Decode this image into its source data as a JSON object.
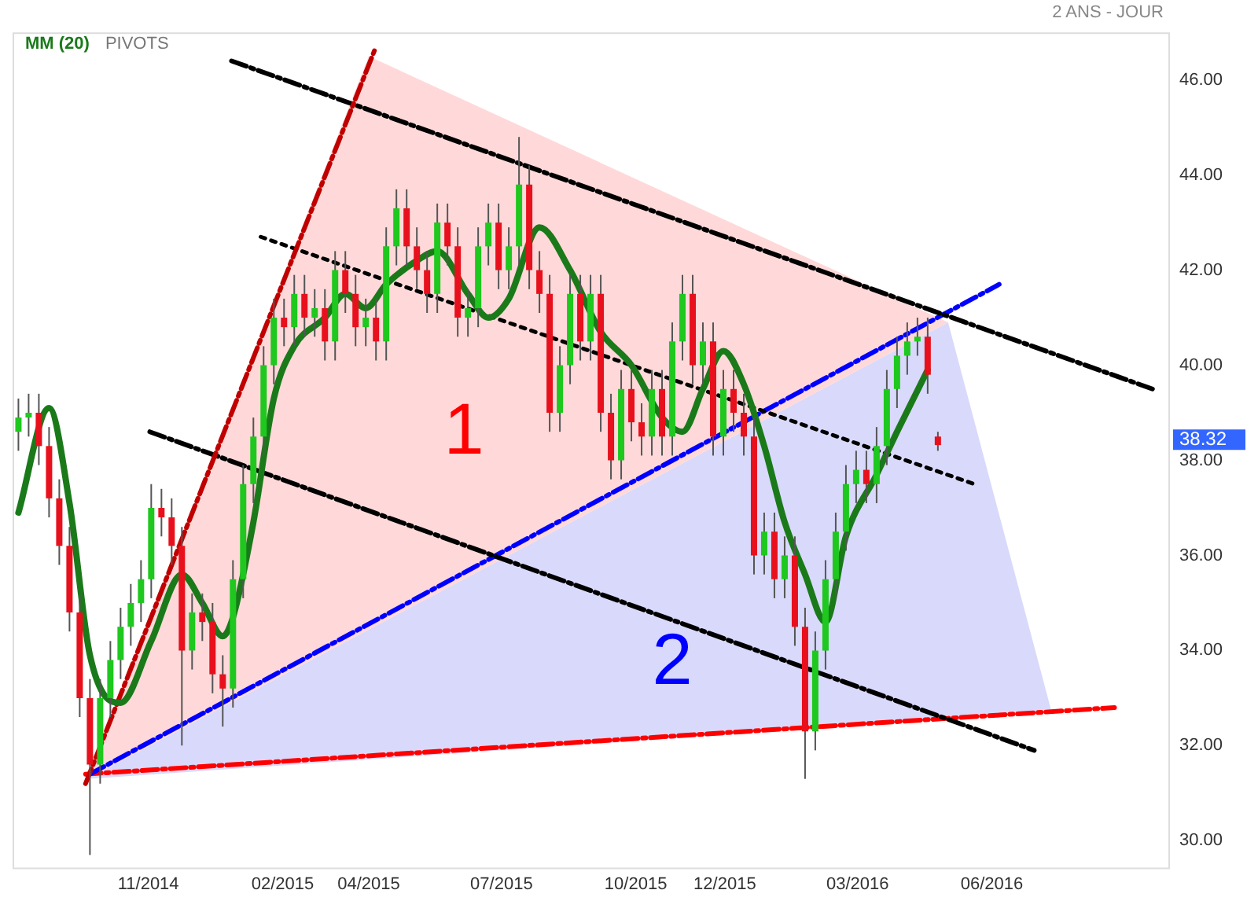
{
  "chart_data": {
    "type": "candlestick",
    "subtitle": "2 ANS - JOUR",
    "x": [
      "2014-08-04",
      "2014-08-11",
      "2014-08-18",
      "2014-08-25",
      "2014-09-01",
      "2014-09-08",
      "2014-09-15",
      "2014-09-22",
      "2014-09-29",
      "2014-10-06",
      "2014-10-13",
      "2014-10-20",
      "2014-10-27",
      "2014-11-03",
      "2014-11-10",
      "2014-11-17",
      "2014-11-24",
      "2014-12-01",
      "2014-12-08",
      "2014-12-15",
      "2014-12-22",
      "2014-12-29",
      "2015-01-05",
      "2015-01-12",
      "2015-01-19",
      "2015-01-26",
      "2015-02-02",
      "2015-02-09",
      "2015-02-16",
      "2015-02-23",
      "2015-03-02",
      "2015-03-09",
      "2015-03-16",
      "2015-03-23",
      "2015-03-30",
      "2015-04-06",
      "2015-04-13",
      "2015-04-20",
      "2015-04-27",
      "2015-05-04",
      "2015-05-11",
      "2015-05-18",
      "2015-05-25",
      "2015-06-01",
      "2015-06-08",
      "2015-06-15",
      "2015-06-22",
      "2015-06-29",
      "2015-07-06",
      "2015-07-13",
      "2015-07-20",
      "2015-07-27",
      "2015-08-03",
      "2015-08-10",
      "2015-08-17",
      "2015-08-24",
      "2015-08-31",
      "2015-09-07",
      "2015-09-14",
      "2015-09-21",
      "2015-09-28",
      "2015-10-05",
      "2015-10-12",
      "2015-10-19",
      "2015-10-26",
      "2015-11-02",
      "2015-11-09",
      "2015-11-16",
      "2015-11-23",
      "2015-11-30",
      "2015-12-07",
      "2015-12-14",
      "2015-12-21",
      "2015-12-28",
      "2016-01-04",
      "2016-01-11",
      "2016-01-18",
      "2016-01-25",
      "2016-02-01",
      "2016-02-08",
      "2016-02-15",
      "2016-02-22",
      "2016-02-29",
      "2016-03-07",
      "2016-03-14",
      "2016-03-21",
      "2016-03-28",
      "2016-04-04",
      "2016-04-11",
      "2016-04-18",
      "2016-04-25"
    ],
    "ohlc": [
      [
        38.6,
        39.3,
        38.2,
        38.9
      ],
      [
        38.9,
        39.4,
        38.5,
        39.0
      ],
      [
        39.0,
        39.4,
        37.9,
        38.3
      ],
      [
        38.3,
        38.7,
        36.8,
        37.2
      ],
      [
        37.2,
        37.6,
        35.8,
        36.2
      ],
      [
        36.2,
        36.6,
        34.4,
        34.8
      ],
      [
        34.8,
        35.2,
        32.6,
        33.0
      ],
      [
        33.0,
        33.4,
        29.7,
        31.6
      ],
      [
        31.6,
        33.4,
        31.2,
        33.0
      ],
      [
        33.0,
        34.2,
        32.6,
        33.8
      ],
      [
        33.8,
        34.9,
        33.4,
        34.5
      ],
      [
        34.5,
        35.4,
        34.1,
        35.0
      ],
      [
        35.0,
        35.9,
        34.6,
        35.5
      ],
      [
        35.5,
        37.5,
        35.1,
        37.0
      ],
      [
        37.0,
        37.4,
        36.4,
        36.8
      ],
      [
        36.8,
        37.2,
        35.8,
        36.2
      ],
      [
        36.2,
        36.6,
        32.0,
        34.0
      ],
      [
        34.0,
        35.2,
        33.6,
        34.8
      ],
      [
        34.8,
        35.2,
        34.2,
        34.6
      ],
      [
        34.6,
        35.0,
        33.1,
        33.5
      ],
      [
        33.5,
        33.9,
        32.4,
        33.2
      ],
      [
        33.2,
        35.9,
        32.8,
        35.5
      ],
      [
        35.5,
        37.9,
        35.1,
        37.5
      ],
      [
        37.5,
        38.9,
        37.1,
        38.5
      ],
      [
        38.5,
        40.4,
        38.1,
        40.0
      ],
      [
        40.0,
        41.4,
        39.6,
        41.0
      ],
      [
        41.0,
        41.4,
        40.4,
        40.8
      ],
      [
        40.8,
        41.9,
        40.4,
        41.5
      ],
      [
        41.5,
        41.9,
        40.6,
        41.0
      ],
      [
        41.0,
        41.6,
        40.6,
        41.2
      ],
      [
        41.2,
        41.6,
        40.1,
        40.5
      ],
      [
        40.5,
        42.4,
        40.1,
        42.0
      ],
      [
        42.0,
        42.4,
        41.1,
        41.5
      ],
      [
        41.5,
        41.9,
        40.4,
        40.8
      ],
      [
        40.8,
        41.4,
        40.4,
        41.0
      ],
      [
        41.0,
        41.4,
        40.1,
        40.5
      ],
      [
        40.5,
        42.9,
        40.1,
        42.5
      ],
      [
        42.5,
        43.7,
        42.1,
        43.3
      ],
      [
        43.3,
        43.7,
        42.1,
        42.5
      ],
      [
        42.5,
        42.9,
        41.6,
        42.0
      ],
      [
        42.0,
        42.4,
        41.1,
        41.5
      ],
      [
        41.5,
        43.4,
        41.1,
        43.0
      ],
      [
        43.0,
        43.4,
        42.1,
        42.5
      ],
      [
        42.5,
        42.9,
        40.6,
        41.0
      ],
      [
        41.0,
        41.6,
        40.6,
        41.2
      ],
      [
        41.2,
        42.9,
        40.8,
        42.5
      ],
      [
        42.5,
        43.4,
        42.1,
        43.0
      ],
      [
        43.0,
        43.4,
        41.6,
        42.0
      ],
      [
        42.0,
        42.9,
        41.6,
        42.5
      ],
      [
        42.5,
        44.8,
        42.1,
        43.8
      ],
      [
        43.8,
        44.2,
        41.6,
        42.0
      ],
      [
        42.0,
        42.4,
        41.1,
        41.5
      ],
      [
        41.5,
        41.9,
        38.6,
        39.0
      ],
      [
        39.0,
        40.4,
        38.6,
        40.0
      ],
      [
        40.0,
        41.9,
        39.6,
        41.5
      ],
      [
        41.5,
        41.9,
        40.1,
        40.5
      ],
      [
        40.5,
        41.9,
        40.1,
        41.5
      ],
      [
        41.5,
        41.9,
        38.6,
        39.0
      ],
      [
        39.0,
        39.4,
        37.6,
        38.0
      ],
      [
        38.0,
        39.9,
        37.6,
        39.5
      ],
      [
        39.5,
        39.9,
        38.4,
        38.8
      ],
      [
        38.8,
        39.2,
        38.1,
        38.5
      ],
      [
        38.5,
        39.9,
        38.1,
        39.5
      ],
      [
        39.5,
        39.9,
        38.1,
        38.5
      ],
      [
        38.5,
        40.9,
        38.1,
        40.5
      ],
      [
        40.5,
        41.9,
        40.1,
        41.5
      ],
      [
        41.5,
        41.9,
        39.6,
        40.0
      ],
      [
        40.0,
        40.9,
        39.6,
        40.5
      ],
      [
        40.5,
        40.9,
        38.1,
        38.5
      ],
      [
        38.5,
        39.9,
        38.1,
        39.5
      ],
      [
        39.5,
        39.9,
        38.6,
        39.0
      ],
      [
        39.0,
        39.4,
        38.1,
        38.5
      ],
      [
        38.5,
        38.9,
        35.6,
        36.0
      ],
      [
        36.0,
        36.9,
        35.6,
        36.5
      ],
      [
        36.5,
        36.9,
        35.1,
        35.5
      ],
      [
        35.5,
        36.4,
        35.1,
        36.0
      ],
      [
        36.0,
        36.4,
        34.1,
        34.5
      ],
      [
        34.5,
        34.9,
        31.3,
        32.3
      ],
      [
        32.3,
        34.4,
        31.9,
        34.0
      ],
      [
        34.0,
        35.9,
        33.6,
        35.5
      ],
      [
        35.5,
        36.9,
        35.1,
        36.5
      ],
      [
        36.5,
        37.9,
        36.1,
        37.5
      ],
      [
        37.5,
        38.2,
        37.1,
        37.8
      ],
      [
        37.8,
        38.2,
        37.1,
        37.5
      ],
      [
        37.5,
        38.7,
        37.1,
        38.3
      ],
      [
        38.3,
        39.9,
        37.9,
        39.5
      ],
      [
        39.5,
        40.6,
        39.1,
        40.2
      ],
      [
        40.2,
        40.9,
        39.8,
        40.5
      ],
      [
        40.5,
        41.0,
        40.2,
        40.6
      ],
      [
        40.6,
        41.0,
        39.4,
        39.8
      ],
      [
        38.5,
        38.6,
        38.2,
        38.32
      ]
    ],
    "colors": [
      "#1ec81e",
      "#1ec81e",
      "#e8101c",
      "#e8101c",
      "#e8101c",
      "#e8101c",
      "#e8101c",
      "#e8101c",
      "#1ec81e",
      "#1ec81e",
      "#1ec81e",
      "#1ec81e",
      "#1ec81e",
      "#1ec81e",
      "#e8101c",
      "#e8101c",
      "#e8101c",
      "#1ec81e",
      "#e8101c",
      "#e8101c",
      "#e8101c",
      "#1ec81e",
      "#1ec81e",
      "#1ec81e",
      "#1ec81e",
      "#1ec81e",
      "#e8101c",
      "#1ec81e",
      "#e8101c",
      "#1ec81e",
      "#e8101c",
      "#1ec81e",
      "#e8101c",
      "#e8101c",
      "#1ec81e",
      "#e8101c",
      "#1ec81e",
      "#1ec81e",
      "#e8101c",
      "#e8101c",
      "#e8101c",
      "#1ec81e",
      "#e8101c",
      "#e8101c",
      "#1ec81e",
      "#1ec81e",
      "#1ec81e",
      "#e8101c",
      "#1ec81e",
      "#1ec81e",
      "#e8101c",
      "#e8101c",
      "#e8101c",
      "#1ec81e",
      "#1ec81e",
      "#e8101c",
      "#1ec81e",
      "#e8101c",
      "#e8101c",
      "#1ec81e",
      "#e8101c",
      "#e8101c",
      "#1ec81e",
      "#e8101c",
      "#1ec81e",
      "#1ec81e",
      "#e8101c",
      "#1ec81e",
      "#e8101c",
      "#1ec81e",
      "#e8101c",
      "#e8101c",
      "#e8101c",
      "#1ec81e",
      "#e8101c",
      "#1ec81e",
      "#e8101c",
      "#e8101c",
      "#1ec81e",
      "#1ec81e",
      "#1ec81e",
      "#1ec81e",
      "#1ec81e",
      "#e8101c",
      "#1ec81e",
      "#1ec81e",
      "#1ec81e",
      "#1ec81e",
      "#1ec81e",
      "#e8101c",
      "#e8101c"
    ],
    "series": [
      {
        "type": "area",
        "color": "#ffd9d9",
        "x": [
          "2014-09-20",
          "2015-04-01",
          "2016-05-02",
          "2014-09-20"
        ],
        "values": [
          31.3,
          46.5,
          40.9,
          31.3
        ]
      },
      {
        "type": "area",
        "color": "#d9d9fb",
        "x": [
          "2014-09-20",
          "2016-05-02",
          "2016-07-12",
          "2014-09-20"
        ],
        "values": [
          31.3,
          40.9,
          32.7,
          31.3
        ]
      },
      {
        "type": "line",
        "name": "MM (20)",
        "color": "#1a7a1a",
        "line_style": "solid",
        "x": [
          "2014-08-04",
          "2014-08-25",
          "2014-09-08",
          "2014-09-22",
          "2014-10-13",
          "2014-11-03",
          "2014-11-24",
          "2014-12-08",
          "2014-12-22",
          "2014-12-29",
          "2015-01-12",
          "2015-01-26",
          "2015-02-09",
          "2015-03-02",
          "2015-03-16",
          "2015-03-30",
          "2015-04-13",
          "2015-05-04",
          "2015-05-18",
          "2015-06-08",
          "2015-06-22",
          "2015-07-06",
          "2015-07-27",
          "2015-08-17",
          "2015-09-07",
          "2015-09-28",
          "2015-10-19",
          "2015-11-02",
          "2015-11-16",
          "2015-11-30",
          "2015-12-14",
          "2015-12-28",
          "2016-01-11",
          "2016-01-25",
          "2016-02-08",
          "2016-02-22",
          "2016-03-14",
          "2016-03-28",
          "2016-04-18"
        ],
        "values": [
          36.9,
          39.1,
          37.1,
          33.9,
          32.9,
          34.2,
          35.6,
          35.0,
          34.3,
          34.7,
          36.7,
          39.3,
          40.4,
          41.0,
          41.5,
          41.2,
          41.7,
          42.2,
          42.4,
          41.5,
          41.0,
          41.4,
          42.9,
          42.0,
          40.7,
          40.0,
          38.9,
          38.6,
          39.5,
          40.3,
          39.6,
          38.3,
          36.7,
          35.6,
          34.6,
          36.4,
          37.7,
          38.6,
          39.9
        ]
      },
      {
        "type": "line",
        "color": "#c00000",
        "line_style": "dashed",
        "x": [
          "2014-09-19",
          "2015-04-06"
        ],
        "values": [
          31.2,
          46.7
        ]
      },
      {
        "type": "line",
        "color": "#000000",
        "line_style": "dashed",
        "x": [
          "2014-12-28",
          "2016-09-19"
        ],
        "values": [
          46.4,
          39.5
        ]
      },
      {
        "type": "line",
        "color": "#000000",
        "line_style": "dotted",
        "x": [
          "2015-01-17",
          "2016-05-20"
        ],
        "values": [
          42.7,
          37.5
        ]
      },
      {
        "type": "line",
        "color": "#000000",
        "line_style": "dashed",
        "x": [
          "2014-11-02",
          "2016-06-30"
        ],
        "values": [
          38.6,
          31.9
        ]
      },
      {
        "type": "line",
        "color": "#0000ff",
        "line_style": "dashed",
        "x": [
          "2014-09-22",
          "2016-06-06"
        ],
        "values": [
          31.4,
          41.7
        ]
      },
      {
        "type": "line",
        "color": "#ff0000",
        "line_style": "dashed",
        "x": [
          "2014-09-19",
          "2016-08-24"
        ],
        "values": [
          31.4,
          32.8
        ]
      }
    ],
    "annotations": [
      "PIVOTS",
      "1",
      "2",
      "38.32"
    ],
    "xlim": [
      "2014-07-31",
      "2016-10-01"
    ],
    "xticks": [
      {
        "value": "2014-11-01",
        "label": "11/2014"
      },
      {
        "value": "2015-02-01",
        "label": "02/2015"
      },
      {
        "value": "2015-04-01",
        "label": "04/2015"
      },
      {
        "value": "2015-07-01",
        "label": "07/2015"
      },
      {
        "value": "2015-10-01",
        "label": "10/2015"
      },
      {
        "value": "2015-12-01",
        "label": "12/2015"
      },
      {
        "value": "2016-03-01",
        "label": "03/2016"
      },
      {
        "value": "2016-06-01",
        "label": "06/2016"
      }
    ],
    "ylim": [
      29.4,
      47.0
    ],
    "yticks": [
      {
        "value": 30,
        "label": "30.00"
      },
      {
        "value": 32,
        "label": "32.00"
      },
      {
        "value": 34,
        "label": "34.00"
      },
      {
        "value": 36,
        "label": "36.00"
      },
      {
        "value": 38,
        "label": "38.00"
      },
      {
        "value": 40,
        "label": "40.00"
      },
      {
        "value": 42,
        "label": "42.00"
      },
      {
        "value": 44,
        "label": "44.00"
      },
      {
        "value": 46,
        "label": "46.00"
      }
    ],
    "legend": "top left",
    "marker": "none",
    "grid": false
  }
}
